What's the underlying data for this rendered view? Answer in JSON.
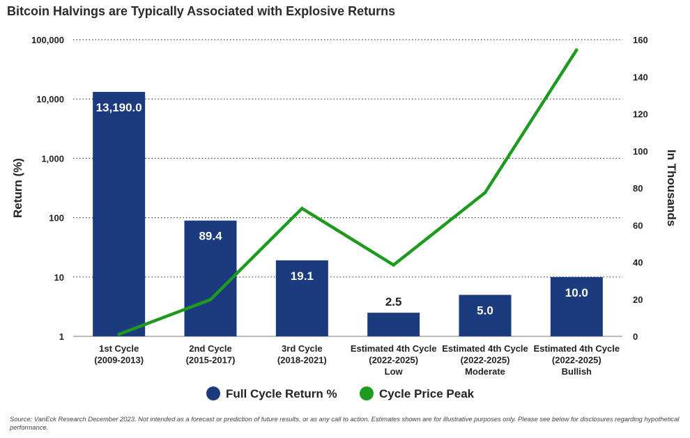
{
  "chart_data": {
    "type": "bar+line",
    "title": "Bitcoin Halvings are Typically Associated with Explosive Returns",
    "categories": [
      [
        "1st Cycle",
        "(2009-2013)"
      ],
      [
        "2nd Cycle",
        "(2015-2017)"
      ],
      [
        "3rd Cycle",
        "(2018-2021)"
      ],
      [
        "Estimated 4th Cycle",
        "(2022-2025)",
        "Low"
      ],
      [
        "Estimated 4th Cycle",
        "(2022-2025)",
        "Moderate"
      ],
      [
        "Estimated 4th Cycle",
        "(2022-2025)",
        "Bullish"
      ]
    ],
    "series": [
      {
        "name": "Full Cycle Return %",
        "type": "bar",
        "axis": "left",
        "color": "#1c3a7e",
        "values": [
          13190.0,
          89.4,
          19.1,
          2.5,
          5.0,
          10.0
        ],
        "labels": [
          "13,190.0",
          "89.4",
          "19.1",
          "2.5",
          "5.0",
          "10.0"
        ]
      },
      {
        "name": "Cycle Price Peak",
        "type": "line",
        "axis": "right",
        "color": "#1e9a1e",
        "values": [
          1.1,
          19.8,
          69.0,
          38.5,
          77.5,
          154.5
        ]
      }
    ],
    "ylabel": "Return (%)",
    "y2label": "In Thousands",
    "yscale": "log",
    "ylim": [
      1,
      100000
    ],
    "yticks": [
      1,
      10,
      100,
      1000,
      10000,
      100000
    ],
    "ytick_labels": [
      "1",
      "10",
      "100",
      "1,000",
      "10,000",
      "100,000"
    ],
    "y2lim": [
      0,
      160
    ],
    "y2ticks": [
      0,
      20,
      40,
      60,
      80,
      100,
      120,
      140,
      160
    ],
    "y2tick_labels": [
      "0",
      "20",
      "40",
      "60",
      "80",
      "100",
      "120",
      "140",
      "160"
    ],
    "grid": "dotted-horizontal",
    "legend": "bottom-center"
  },
  "footnote": "Source: VanEck Research December 2023. Not intended as a forecast or prediction of future results, or as any call to action. Estimates shown are for illustrative purposes only. Please see below for disclosures regarding hypothetical performance."
}
